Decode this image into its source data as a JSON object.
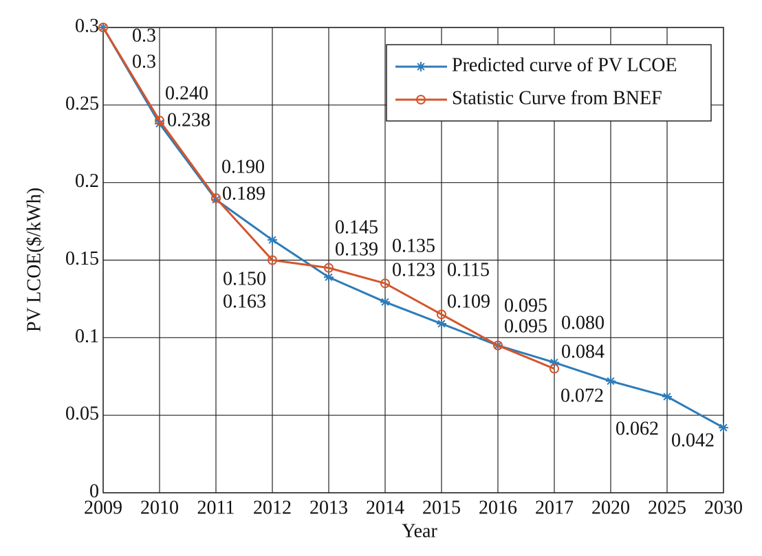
{
  "chart_data": {
    "type": "line",
    "x_label": "Year",
    "y_label": "PV LCOE($/kWh)",
    "categories": [
      "2009",
      "2010",
      "2011",
      "2012",
      "2013",
      "2014",
      "2015",
      "2016",
      "2017",
      "2020",
      "2025",
      "2030"
    ],
    "series": [
      {
        "name": "Predicted curve of PV LCOE",
        "color": "#2f7bb8",
        "marker": "asterisk",
        "values": [
          0.3,
          0.238,
          0.189,
          0.163,
          0.139,
          0.123,
          0.109,
          0.095,
          0.084,
          0.072,
          0.062,
          0.042
        ],
        "value_labels": [
          "0.3",
          "0.238",
          "0.189",
          "0.163",
          "0.139",
          "0.123",
          "0.109",
          "0.095",
          "0.084",
          "0.072",
          "0.062",
          "0.042"
        ]
      },
      {
        "name": "Statistic Curve from BNEF",
        "color": "#d4552b",
        "marker": "circle",
        "values": [
          0.3,
          0.24,
          0.19,
          0.15,
          0.145,
          0.135,
          0.115,
          0.095,
          0.08,
          null,
          null,
          null
        ],
        "value_labels": [
          "0.3",
          "0.240",
          "0.190",
          "0.150",
          "0.145",
          "0.135",
          "0.115",
          "0.095",
          "0.080",
          null,
          null,
          null
        ]
      }
    ],
    "ylim": [
      0,
      0.3
    ],
    "yticks": [
      0,
      0.05,
      0.1,
      0.15,
      0.2,
      0.25,
      0.3
    ],
    "grid": true,
    "legend": "upper right"
  }
}
